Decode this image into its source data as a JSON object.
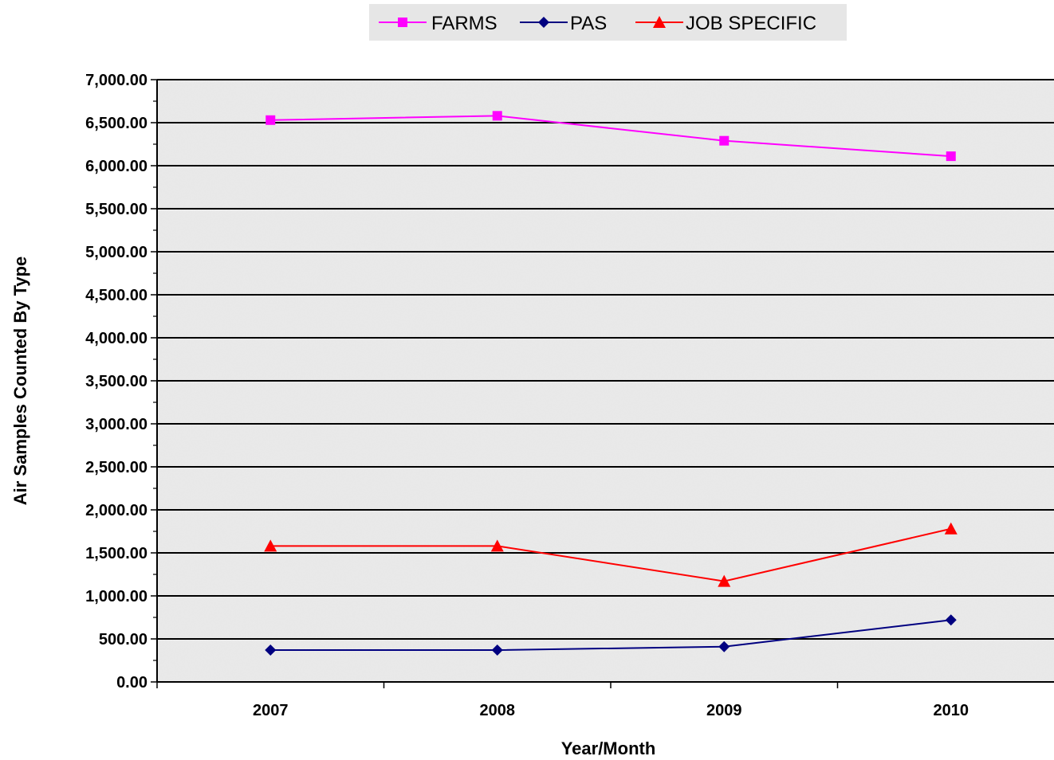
{
  "chart_data": {
    "type": "line",
    "title": "",
    "xlabel": "Year/Month",
    "ylabel": "Air Samples Counted By Type",
    "categories": [
      "2007",
      "2008",
      "2009",
      "2010"
    ],
    "ylim": [
      0,
      7000
    ],
    "y_step": 500,
    "y_tick_labels": [
      "0.00",
      "500.00",
      "1,000.00",
      "1,500.00",
      "2,000.00",
      "2,500.00",
      "3,000.00",
      "3,500.00",
      "4,000.00",
      "4,500.00",
      "5,000.00",
      "5,500.00",
      "6,000.00",
      "6,500.00",
      "7,000.00"
    ],
    "grid": true,
    "legend_position": "top",
    "background": "gray-granite-texture",
    "series": [
      {
        "name": "FARMS",
        "values": [
          6530,
          6580,
          6290,
          6110
        ],
        "color": "#ff00ff",
        "marker": "square"
      },
      {
        "name": "PAS",
        "values": [
          370,
          370,
          410,
          720
        ],
        "color": "#000080",
        "marker": "diamond"
      },
      {
        "name": "JOB SPECIFIC",
        "values": [
          1580,
          1580,
          1170,
          1780
        ],
        "color": "#ff0000",
        "marker": "triangle"
      }
    ]
  }
}
